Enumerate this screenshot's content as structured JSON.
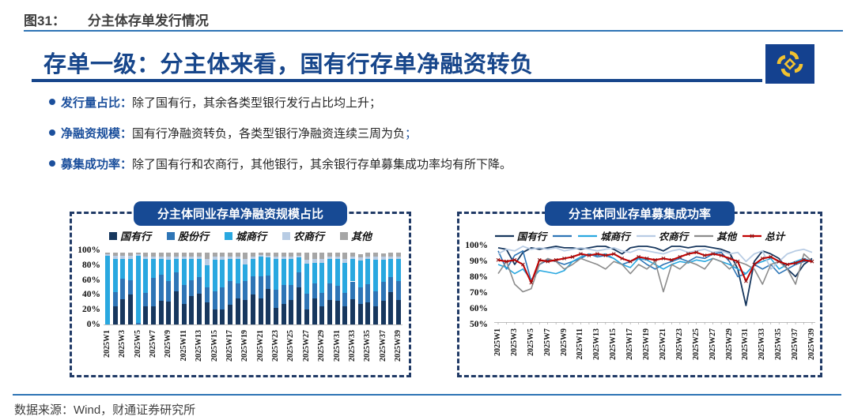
{
  "header": {
    "figure_label": "图31：",
    "figure_title": "分主体存单发行情况"
  },
  "slide": {
    "title": "存单一级：分主体来看，国有行存单净融资转负",
    "logo_name": "caitong-securities-emblem",
    "bullets": [
      {
        "label": "发行量占比：",
        "text": "除了国有行，其余各类型银行发行占比均上升；",
        "suffix": ""
      },
      {
        "label": "净融资规模：",
        "text": "国有行净融资转负，各类型银行净融资连续三周为负",
        "suffix": "；"
      },
      {
        "label": "募集成功率：",
        "text": "除了国有行和农商行，其他银行，其余银行存单募集成功率均有所下降。",
        "suffix": ""
      }
    ]
  },
  "footer": {
    "source": "数据来源：Wind，财通证券研究所"
  },
  "colors": {
    "accent_blue": "#17468B",
    "rule_blue": "#2E74B5",
    "pill_blue": "#174A94",
    "dashed_border": "#203A66",
    "logo_bg": "#14418F",
    "logo_gold": "#F2C230",
    "total_red": "#C00000"
  },
  "chart_data": [
    {
      "type": "bar",
      "stacked": true,
      "title": "分主体同业存单净融资规模占比",
      "ylim": [
        0,
        100
      ],
      "y_ticks": [
        "100%",
        "80%",
        "60%",
        "40%",
        "20%",
        "0%"
      ],
      "x_tick_every": 2,
      "categories": [
        "2025W1",
        "2025W2",
        "2025W3",
        "2025W4",
        "2025W5",
        "2025W6",
        "2025W7",
        "2025W8",
        "2025W9",
        "2025W10",
        "2025W11",
        "2025W12",
        "2025W13",
        "2025W14",
        "2025W15",
        "2025W16",
        "2025W17",
        "2025W18",
        "2025W19",
        "2025W20",
        "2025W21",
        "2025W22",
        "2025W23",
        "2025W24",
        "2025W25",
        "2025W26",
        "2025W27",
        "2025W28",
        "2025W29",
        "2025W30",
        "2025W31",
        "2025W32",
        "2025W33",
        "2025W34",
        "2025W35",
        "2025W36",
        "2025W37",
        "2025W38",
        "2025W39"
      ],
      "series": [
        {
          "name": "国有行",
          "color": "#17375E",
          "values": [
            0,
            24,
            34,
            40,
            0,
            25,
            25,
            32,
            31,
            45,
            28,
            38,
            42,
            30,
            20,
            20,
            27,
            35,
            33,
            40,
            35,
            48,
            22,
            28,
            33,
            50,
            20,
            35,
            25,
            33,
            32,
            25,
            34,
            28,
            30,
            25,
            32,
            44,
            33
          ]
        },
        {
          "name": "股份行",
          "color": "#2E75B6",
          "values": [
            0,
            20,
            28,
            20,
            2,
            18,
            38,
            35,
            28,
            25,
            25,
            22,
            22,
            20,
            25,
            30,
            32,
            20,
            25,
            25,
            30,
            18,
            25,
            25,
            20,
            20,
            22,
            20,
            18,
            22,
            20,
            18,
            24,
            22,
            24,
            20,
            25,
            20,
            25
          ]
        },
        {
          "name": "城商行",
          "color": "#29A8E0",
          "values": [
            93,
            44,
            26,
            28,
            91,
            45,
            25,
            21,
            28,
            18,
            35,
            28,
            24,
            30,
            42,
            37,
            29,
            33,
            23,
            23,
            26,
            24,
            41,
            35,
            35,
            20,
            40,
            28,
            40,
            33,
            36,
            40,
            30,
            36,
            34,
            42,
            30,
            24,
            30
          ]
        },
        {
          "name": "农商行",
          "color": "#B8CCE4",
          "values": [
            2,
            5,
            5,
            5,
            2,
            4,
            4,
            4,
            5,
            4,
            4,
            4,
            4,
            8,
            5,
            5,
            4,
            4,
            7,
            4,
            3,
            3,
            4,
            4,
            4,
            3,
            5,
            5,
            5,
            4,
            4,
            5,
            4,
            4,
            4,
            4,
            4,
            4,
            4
          ]
        },
        {
          "name": "其他",
          "color": "#A6A6A6",
          "values": [
            2,
            4,
            4,
            4,
            2,
            5,
            5,
            5,
            5,
            5,
            5,
            5,
            5,
            9,
            5,
            5,
            5,
            5,
            9,
            5,
            3,
            4,
            5,
            5,
            5,
            4,
            10,
            9,
            9,
            5,
            5,
            9,
            5,
            5,
            5,
            6,
            5,
            5,
            5
          ]
        }
      ]
    },
    {
      "type": "line",
      "title": "分主体同业存单募集成功率",
      "ylim": [
        50,
        100
      ],
      "y_ticks": [
        "100%",
        "90%",
        "80%",
        "70%",
        "60%",
        "50%"
      ],
      "x_tick_every": 2,
      "categories": [
        "2025W1",
        "2025W2",
        "2025W3",
        "2025W4",
        "2025W5",
        "2025W6",
        "2025W7",
        "2025W8",
        "2025W9",
        "2025W10",
        "2025W11",
        "2025W12",
        "2025W13",
        "2025W14",
        "2025W15",
        "2025W16",
        "2025W17",
        "2025W18",
        "2025W19",
        "2025W20",
        "2025W21",
        "2025W22",
        "2025W23",
        "2025W24",
        "2025W25",
        "2025W26",
        "2025W27",
        "2025W28",
        "2025W29",
        "2025W30",
        "2025W31",
        "2025W32",
        "2025W33",
        "2025W34",
        "2025W35",
        "2025W36",
        "2025W37",
        "2025W38",
        "2025W39"
      ],
      "series": [
        {
          "name": "国有行",
          "color": "#17375E",
          "width": 1.8,
          "values": [
            99,
            98,
            88,
            96,
            99,
            98,
            99,
            100,
            99,
            99,
            98,
            99,
            100,
            100,
            98,
            95,
            99,
            100,
            100,
            99,
            97,
            100,
            100,
            99,
            100,
            100,
            99,
            98,
            96,
            85,
            61,
            90,
            97,
            95,
            92,
            85,
            80,
            88,
            92
          ]
        },
        {
          "name": "",
          "color": "#2E75B6",
          "width": 1.6,
          "values": [
            97,
            85,
            94,
            97,
            77,
            88,
            91,
            90,
            88,
            90,
            92,
            95,
            93,
            94,
            92,
            88,
            90,
            92,
            88,
            85,
            88,
            90,
            92,
            90,
            93,
            92,
            95,
            96,
            90,
            80,
            82,
            88,
            85,
            88,
            82,
            85,
            88,
            90,
            91
          ]
        },
        {
          "name": "城商行",
          "color": "#29A8E0",
          "width": 1.6,
          "values": [
            88,
            86,
            82,
            85,
            78,
            84,
            83,
            82,
            84,
            90,
            93,
            95,
            94,
            95,
            92,
            88,
            86,
            92,
            91,
            88,
            85,
            88,
            90,
            89,
            91,
            90,
            92,
            90,
            88,
            85,
            82,
            88,
            90,
            92,
            85,
            88,
            90,
            92,
            90
          ]
        },
        {
          "name": "农商行",
          "color": "#B8CCE4",
          "width": 1.8,
          "values": [
            95,
            98,
            97,
            100,
            98,
            99,
            98,
            99,
            97,
            98,
            99,
            98,
            97,
            98,
            99,
            97,
            96,
            98,
            97,
            96,
            95,
            97,
            98,
            96,
            97,
            98,
            96,
            97,
            95,
            96,
            90,
            95,
            97,
            85,
            90,
            95,
            97,
            98,
            96
          ]
        },
        {
          "name": "其他",
          "color": "#8C8C8C",
          "width": 1.6,
          "values": [
            82,
            90,
            75,
            70,
            72,
            88,
            92,
            90,
            85,
            88,
            92,
            90,
            88,
            85,
            90,
            88,
            82,
            88,
            85,
            90,
            70,
            88,
            85,
            90,
            88,
            85,
            92,
            90,
            85,
            90,
            88,
            85,
            75,
            88,
            90,
            85,
            75,
            95,
            90
          ]
        },
        {
          "name": "总计",
          "color": "#C00000",
          "width": 2.1,
          "marker": true,
          "values": [
            91,
            90,
            91,
            88,
            76,
            91,
            90,
            91,
            92,
            93,
            95,
            94,
            95,
            94,
            95,
            92,
            90,
            93,
            92,
            91,
            92,
            91,
            93,
            95,
            96,
            94,
            95,
            94,
            92,
            90,
            77,
            88,
            92,
            93,
            90,
            88,
            89,
            91,
            90
          ]
        }
      ]
    }
  ]
}
